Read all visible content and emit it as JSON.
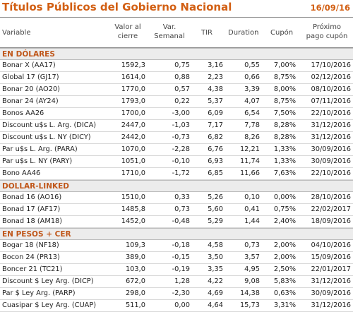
{
  "title": "Títulos Públicos del Gobierno Nacional",
  "date": "16/09/16",
  "columns": {
    "variable": "Variable",
    "valor": [
      "Valor al",
      "cierre"
    ],
    "var": [
      "Var.",
      "Semanal"
    ],
    "tir": "TIR",
    "duration": "Duration",
    "cupon": "Cupón",
    "proximo": [
      "Próximo",
      "pago cupón"
    ]
  },
  "sections": [
    {
      "title": "EN DÓLARES",
      "rows": [
        {
          "variable": "Bonar X (AA17)",
          "valor": "1592,3",
          "var": "0,75",
          "tir": "3,16",
          "duration": "0,55",
          "cupon": "7,00%",
          "proximo": "17/10/2016"
        },
        {
          "variable": "Global 17 (GJ17)",
          "valor": "1614,0",
          "var": "0,88",
          "tir": "2,23",
          "duration": "0,66",
          "cupon": "8,75%",
          "proximo": "02/12/2016"
        },
        {
          "variable": "Bonar 20 (AO20)",
          "valor": "1770,0",
          "var": "0,57",
          "tir": "4,38",
          "duration": "3,39",
          "cupon": "8,00%",
          "proximo": "08/10/2016"
        },
        {
          "variable": "Bonar 24 (AY24)",
          "valor": "1793,0",
          "var": "0,22",
          "tir": "5,37",
          "duration": "4,07",
          "cupon": "8,75%",
          "proximo": "07/11/2016"
        },
        {
          "variable": "Bonos AA26",
          "valor": "1700,0",
          "var": "-3,00",
          "tir": "6,09",
          "duration": "6,54",
          "cupon": "7,50%",
          "proximo": "22/10/2016"
        },
        {
          "variable": "Discount u$s L. Arg. (DICA)",
          "valor": "2447,0",
          "var": "-1,03",
          "tir": "7,17",
          "duration": "7,78",
          "cupon": "8,28%",
          "proximo": "31/12/2016"
        },
        {
          "variable": "Discount u$s L. NY (DICY)",
          "valor": "2442,0",
          "var": "-0,73",
          "tir": "6,82",
          "duration": "8,26",
          "cupon": "8,28%",
          "proximo": "31/12/2016"
        },
        {
          "variable": "Par u$s L. Arg. (PARA)",
          "valor": "1070,0",
          "var": "-2,28",
          "tir": "6,76",
          "duration": "12,21",
          "cupon": "1,33%",
          "proximo": "30/09/2016"
        },
        {
          "variable": "Par u$s L. NY (PARY)",
          "valor": "1051,0",
          "var": "-0,10",
          "tir": "6,93",
          "duration": "11,74",
          "cupon": "1,33%",
          "proximo": "30/09/2016"
        },
        {
          "variable": "Bono AA46",
          "valor": "1710,0",
          "var": "-1,72",
          "tir": "6,85",
          "duration": "11,66",
          "cupon": "7,63%",
          "proximo": "22/10/2016"
        }
      ]
    },
    {
      "title": "DOLLAR-LINKED",
      "rows": [
        {
          "variable": "Bonad 16 (AO16)",
          "valor": "1510,0",
          "var": "0,33",
          "tir": "5,26",
          "duration": "0,10",
          "cupon": "0,00%",
          "proximo": "28/10/2016"
        },
        {
          "variable": "Bonad 17 (AF17)",
          "valor": "1485,8",
          "var": "0,73",
          "tir": "5,60",
          "duration": "0,41",
          "cupon": "0,75%",
          "proximo": "22/02/2017"
        },
        {
          "variable": "Bonad 18 (AM18)",
          "valor": "1452,0",
          "var": "-0,48",
          "tir": "5,29",
          "duration": "1,44",
          "cupon": "2,40%",
          "proximo": "18/09/2016"
        }
      ]
    },
    {
      "title": "EN PESOS + CER",
      "rows": [
        {
          "variable": "Bogar 18 (NF18)",
          "valor": "109,3",
          "var": "-0,18",
          "tir": "4,58",
          "duration": "0,73",
          "cupon": "2,00%",
          "proximo": "04/10/2016"
        },
        {
          "variable": "Bocon 24 (PR13)",
          "valor": "389,0",
          "var": "-0,15",
          "tir": "3,50",
          "duration": "3,57",
          "cupon": "2,00%",
          "proximo": "15/09/2016"
        },
        {
          "variable": "Boncer 21 (TC21)",
          "valor": "103,0",
          "var": "-0,19",
          "tir": "3,35",
          "duration": "4,95",
          "cupon": "2,50%",
          "proximo": "22/01/2017"
        },
        {
          "variable": "Discount $ Ley Arg. (DICP)",
          "valor": "672,0",
          "var": "1,28",
          "tir": "4,22",
          "duration": "9,08",
          "cupon": "5,83%",
          "proximo": "31/12/2016"
        },
        {
          "variable": "Par $ Ley Arg. (PARP)",
          "valor": "298,0",
          "var": "-2,30",
          "tir": "4,69",
          "duration": "14,38",
          "cupon": "0,63%",
          "proximo": "30/09/2016"
        },
        {
          "variable": "Cuasipar $ Ley Arg. (CUAP)",
          "valor": "511,0",
          "var": "0,00",
          "tir": "4,64",
          "duration": "15,73",
          "cupon": "3,31%",
          "proximo": "31/12/2016"
        }
      ]
    }
  ]
}
